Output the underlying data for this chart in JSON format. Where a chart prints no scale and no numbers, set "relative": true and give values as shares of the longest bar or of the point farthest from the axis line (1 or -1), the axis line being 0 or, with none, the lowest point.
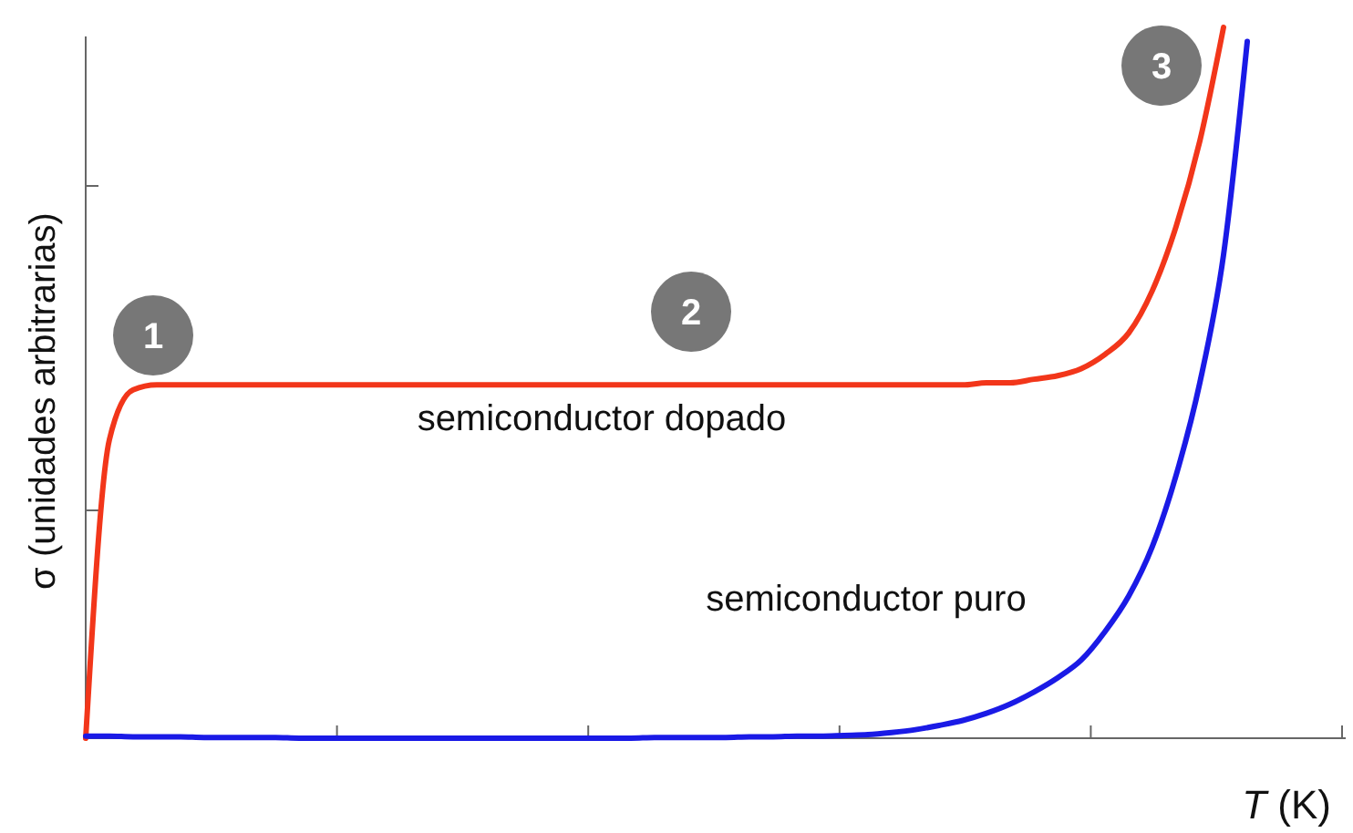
{
  "chart_data": {
    "type": "line",
    "relative": true,
    "xlabel": "T (K)",
    "ylabel": "σ (unidades arbitrarias)",
    "line_style": "solid",
    "annotations": [
      "1",
      "2",
      "3"
    ],
    "categories": [
      null,
      null,
      null,
      null,
      null,
      null,
      null,
      null,
      null,
      null,
      null,
      null,
      null,
      null,
      null,
      null,
      null,
      null,
      null,
      null,
      null,
      null,
      null,
      null,
      null,
      null,
      null,
      null,
      null,
      null,
      null,
      null,
      null,
      null,
      null,
      null,
      null,
      null,
      null,
      null,
      null,
      null,
      null,
      null,
      null,
      null,
      null,
      null,
      null,
      null,
      null,
      null,
      null,
      null
    ],
    "series": [
      {
        "name": "semiconductor dopado",
        "color": "#f2361a",
        "values": [
          0,
          0.42,
          0.49,
          0.497,
          0.497,
          0.497,
          0.497,
          0.497,
          0.497,
          0.497,
          0.497,
          0.497,
          0.497,
          0.497,
          0.497,
          0.497,
          0.497,
          0.497,
          0.497,
          0.497,
          0.497,
          0.497,
          0.497,
          0.497,
          0.497,
          0.497,
          0.497,
          0.497,
          0.497,
          0.497,
          0.497,
          0.497,
          0.497,
          0.497,
          0.497,
          0.497,
          0.497,
          0.497,
          0.5,
          0.5,
          0.505,
          0.51,
          0.52,
          0.54,
          0.57,
          0.63,
          0.72,
          0.84,
          1.0,
          null,
          null,
          null,
          null,
          null
        ]
      },
      {
        "name": "semiconductor puro",
        "color": "#1a1ae6",
        "values": [
          0.003,
          0.003,
          0.002,
          0.002,
          0.002,
          0.001,
          0.001,
          0.001,
          0.001,
          0,
          0,
          0,
          0,
          0,
          0,
          0,
          0,
          0,
          0,
          0,
          0,
          0,
          0,
          0,
          0.001,
          0.001,
          0.001,
          0.001,
          0.002,
          0.002,
          0.003,
          0.003,
          0.004,
          0.005,
          0.008,
          0.012,
          0.018,
          0.025,
          0.035,
          0.048,
          0.065,
          0.085,
          0.11,
          0.15,
          0.2,
          0.27,
          0.37,
          0.5,
          0.68,
          0.98,
          null,
          null,
          null,
          null
        ]
      }
    ]
  }
}
